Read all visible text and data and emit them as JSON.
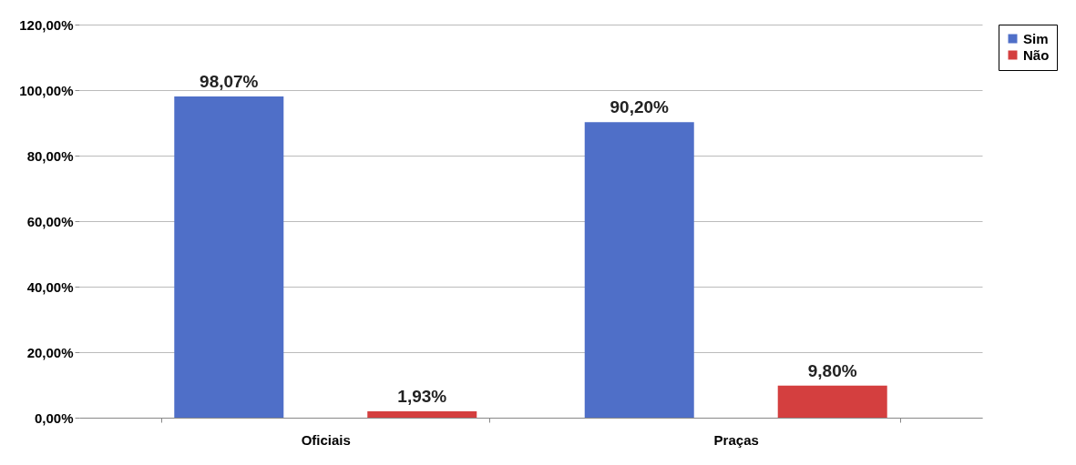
{
  "chart_data": {
    "type": "bar",
    "categories": [
      "Oficiais",
      "Praças"
    ],
    "series": [
      {
        "name": "Sim",
        "color": "#4f6fc8",
        "values": [
          98.07,
          90.2
        ],
        "value_labels": [
          "98,07%",
          "90,20%"
        ]
      },
      {
        "name": "Não",
        "color": "#d43f3f",
        "values": [
          1.93,
          9.8
        ],
        "value_labels": [
          "1,93%",
          "9,80%"
        ]
      }
    ],
    "ylim": [
      0,
      120
    ],
    "yticks": [
      {
        "value": 0,
        "label": "0,00%"
      },
      {
        "value": 20,
        "label": "20,00%"
      },
      {
        "value": 40,
        "label": "40,00%"
      },
      {
        "value": 60,
        "label": "60,00%"
      },
      {
        "value": 80,
        "label": "80,00%"
      },
      {
        "value": 100,
        "label": "100,00%"
      },
      {
        "value": 120,
        "label": "120,00%"
      }
    ],
    "grid": "y",
    "legend": "right"
  }
}
